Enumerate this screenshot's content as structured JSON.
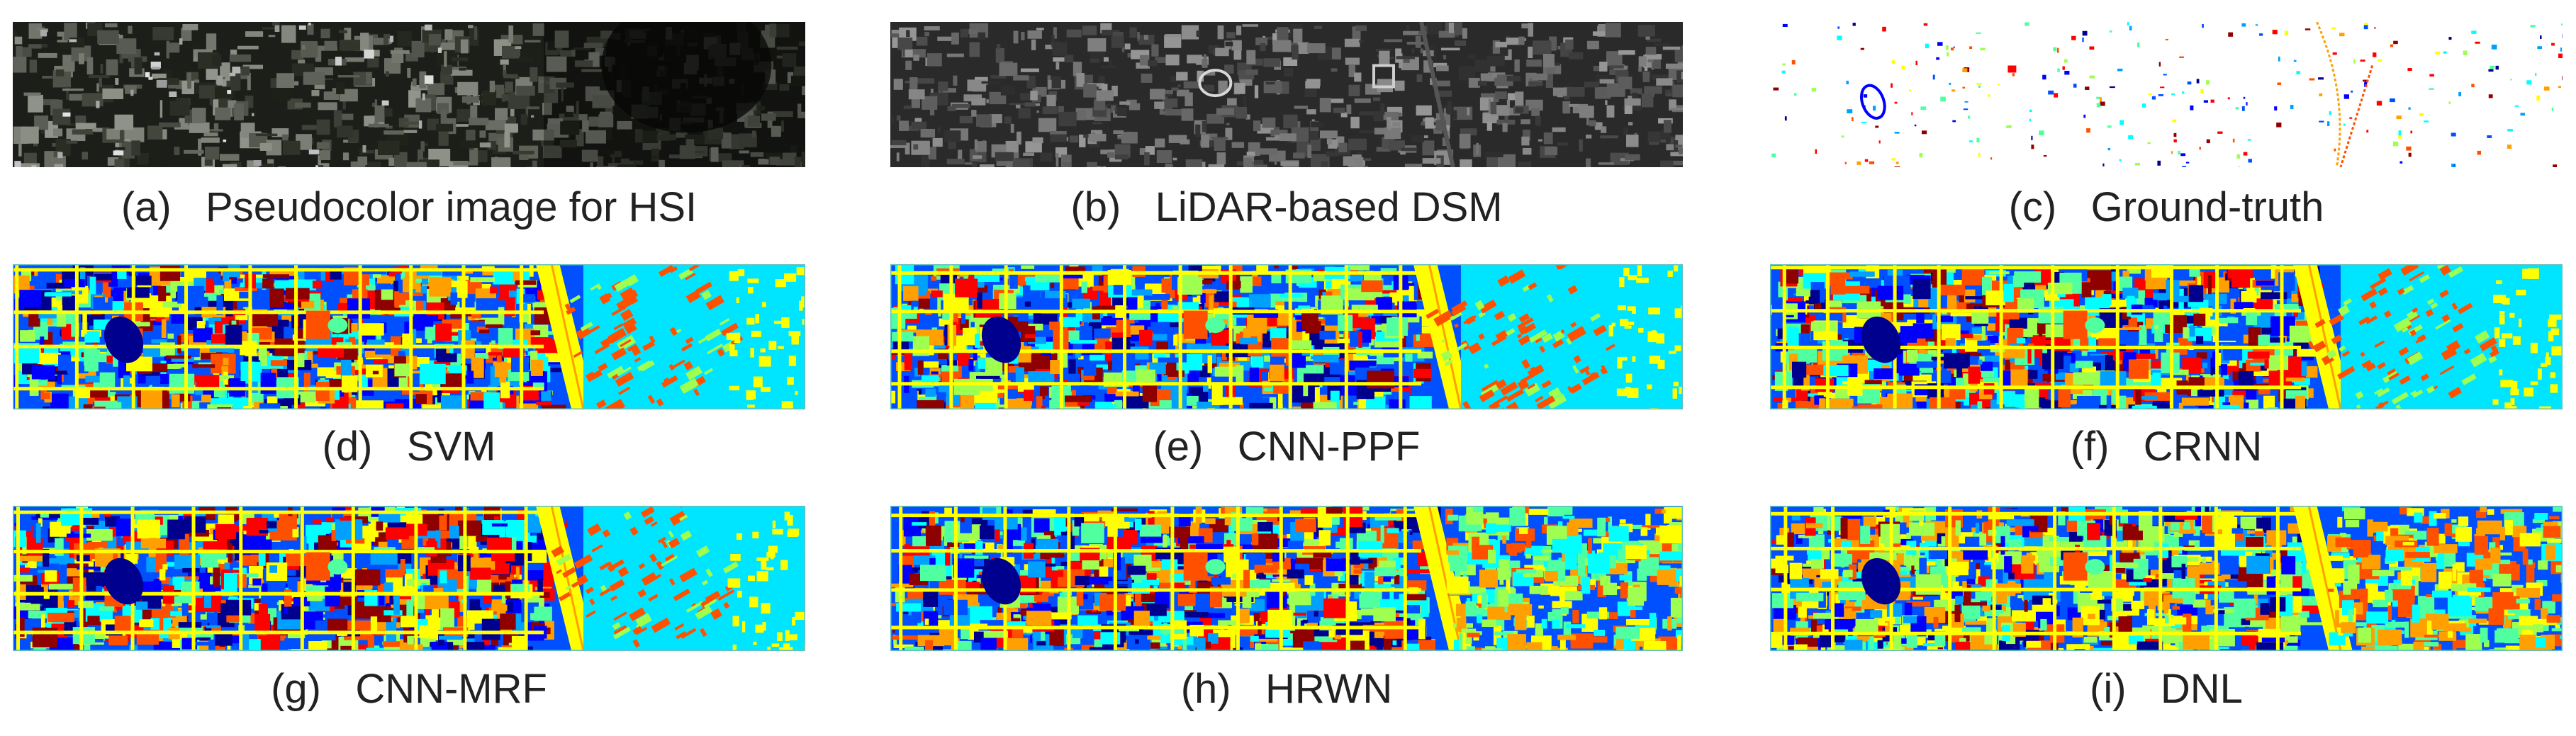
{
  "figure": {
    "panels": [
      {
        "id": "a",
        "label": "(a)",
        "title": "Pseudocolor image for HSI",
        "kind": "pseudocolor"
      },
      {
        "id": "b",
        "label": "(b)",
        "title": "LiDAR-based DSM",
        "kind": "dsm"
      },
      {
        "id": "c",
        "label": "(c)",
        "title": "Ground-truth",
        "kind": "groundtruth"
      },
      {
        "id": "d",
        "label": "(d)",
        "title": "SVM",
        "kind": "classmap"
      },
      {
        "id": "e",
        "label": "(e)",
        "title": "CNN-PPF",
        "kind": "classmap"
      },
      {
        "id": "f",
        "label": "(f)",
        "title": "CRNN",
        "kind": "classmap"
      },
      {
        "id": "g",
        "label": "(g)",
        "title": "CNN-MRF",
        "kind": "classmap"
      },
      {
        "id": "h",
        "label": "(h)",
        "title": "HRWN",
        "kind": "classmap"
      },
      {
        "id": "i",
        "label": "(i)",
        "title": "DNL",
        "kind": "classmap"
      }
    ]
  },
  "colors": {
    "class_palette": [
      "#00008f",
      "#0000ff",
      "#0050ff",
      "#00a0ff",
      "#00ffff",
      "#50ff9f",
      "#9fff50",
      "#ffff00",
      "#ffa000",
      "#ff5000",
      "#ff0000",
      "#8f0000"
    ],
    "background_light": "#00e5ff",
    "pseudocolor_base": "#1c1e1a",
    "dsm_base": "#2a2a2a"
  }
}
